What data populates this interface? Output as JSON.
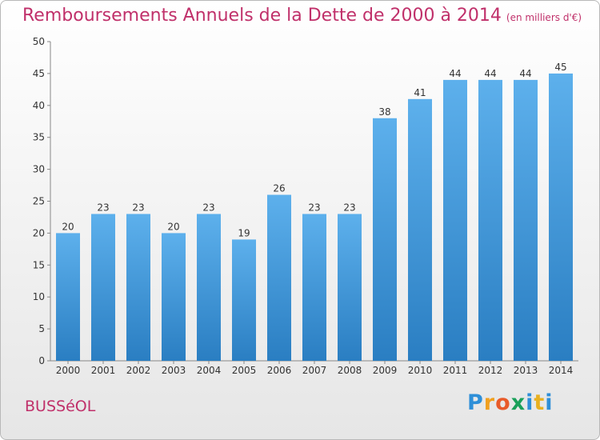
{
  "chart_data": {
    "type": "bar",
    "title": "Remboursements Annuels de la Dette de 2000 à 2014",
    "subtitle": "(en milliers d'€)",
    "categories": [
      "2000",
      "2001",
      "2002",
      "2003",
      "2004",
      "2005",
      "2006",
      "2007",
      "2008",
      "2009",
      "2010",
      "2011",
      "2012",
      "2013",
      "2014"
    ],
    "values": [
      20,
      23,
      23,
      20,
      23,
      19,
      26,
      23,
      23,
      38,
      41,
      44,
      44,
      44,
      45
    ],
    "yticks": [
      0,
      5,
      10,
      15,
      20,
      25,
      30,
      35,
      40,
      45,
      50
    ],
    "ylim": [
      0,
      50
    ],
    "xlabel": "",
    "ylabel": "",
    "bar_color": "#4a9fe0",
    "grid": false
  },
  "commune": "BUSSéOL",
  "logo": {
    "letters": [
      {
        "char": "P",
        "color": "#2e8fd8"
      },
      {
        "char": "r",
        "color": "#f0a020"
      },
      {
        "char": "o",
        "color": "#e85b2a"
      },
      {
        "char": "x",
        "color": "#1aa05a"
      },
      {
        "char": "i",
        "color": "#2e8fd8"
      },
      {
        "char": "t",
        "color": "#e8b020"
      },
      {
        "char": "i",
        "color": "#2e8fd8"
      }
    ]
  },
  "colors": {
    "title": "#c0306a",
    "commune": "#c0306a"
  }
}
